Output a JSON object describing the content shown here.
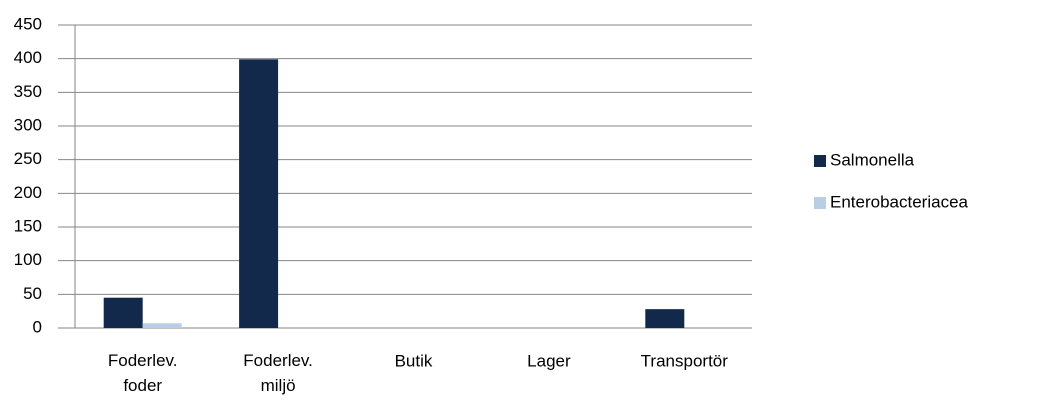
{
  "chart_data": {
    "type": "bar",
    "categories": [
      "Foderlev. foder",
      "Foderlev. miljö",
      "Butik",
      "Lager",
      "Transportör"
    ],
    "series": [
      {
        "name": "Salmonella",
        "color": "#13294b",
        "values": [
          45,
          399,
          0,
          0,
          28
        ]
      },
      {
        "name": "Enterobacteriacea",
        "color": "#b9cde5",
        "values": [
          7,
          0,
          0,
          0,
          0
        ]
      }
    ],
    "ylim": [
      0,
      450
    ],
    "yticks": [
      0,
      50,
      100,
      150,
      200,
      250,
      300,
      350,
      400,
      450
    ],
    "grid": true,
    "legend": "right"
  }
}
